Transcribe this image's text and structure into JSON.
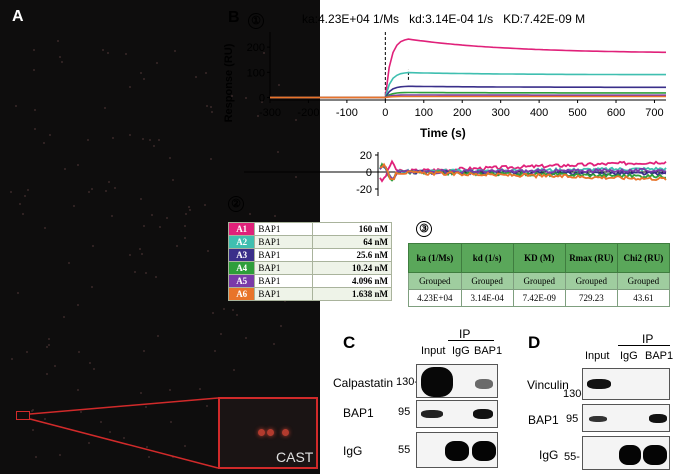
{
  "panelA": {
    "label": "A",
    "zoom_label": "CAST"
  },
  "panelB": {
    "label": "B",
    "sub1": "①",
    "sub2": "②",
    "sub3": "③",
    "kinetics_header": "ka:4.23E+04 1/Ms   kd:3.14E-04 1/s   KD:7.42E-09 M",
    "sensorgram": {
      "ylabel": "Response (RU)",
      "xlabel": "Time (s)",
      "xticks": [
        "-300",
        "-200",
        "-100",
        "0",
        "100",
        "200",
        "300",
        "400",
        "500",
        "600",
        "700"
      ],
      "yticks": [
        "0",
        "100",
        "200"
      ],
      "resid_yticks": [
        "20",
        "0",
        "-20"
      ]
    },
    "legend": [
      {
        "id": "A1",
        "ab": "BAP1",
        "conc": "160 nM",
        "color": "#e0217a"
      },
      {
        "id": "A2",
        "ab": "BAP1",
        "conc": "64 nM",
        "color": "#3fbfb0"
      },
      {
        "id": "A3",
        "ab": "BAP1",
        "conc": "25.6 nM",
        "color": "#3a2f8a"
      },
      {
        "id": "A4",
        "ab": "BAP1",
        "conc": "10.24 nM",
        "color": "#2e9e3a"
      },
      {
        "id": "A5",
        "ab": "BAP1",
        "conc": "4.096 nM",
        "color": "#7a3aa8"
      },
      {
        "id": "A6",
        "ab": "BAP1",
        "conc": "1.638 nM",
        "color": "#e8742a"
      }
    ],
    "kinetics_table": {
      "headers": [
        "ka (1/Ms)",
        "kd (1/s)",
        "KD (M)",
        "Rmax (RU)",
        "Chi2 (RU)"
      ],
      "grouped": [
        "Grouped",
        "Grouped",
        "Grouped",
        "Grouped",
        "Grouped"
      ],
      "values": [
        "4.23E+04",
        "3.14E-04",
        "7.42E-09",
        "729.23",
        "43.61"
      ]
    }
  },
  "panelC": {
    "label": "C",
    "ip": "IP",
    "lanes": [
      "Input",
      "IgG",
      "BAP1"
    ],
    "rows": [
      {
        "name": "Calpastatin",
        "mw": "130-"
      },
      {
        "name": "BAP1",
        "mw": "95"
      },
      {
        "name": "IgG",
        "mw": "55"
      }
    ]
  },
  "panelD": {
    "label": "D",
    "ip": "IP",
    "lanes": [
      "Input",
      "IgG",
      "BAP1"
    ],
    "rows": [
      {
        "name": "Vinculin",
        "mw": "130-"
      },
      {
        "name": "BAP1",
        "mw": "95"
      },
      {
        "name": "IgG",
        "mw": "55-"
      }
    ]
  },
  "chart_data": {
    "type": "line",
    "title": "ka:4.23E+04 1/Ms   kd:3.14E-04 1/s   KD:7.42E-09 M",
    "xlabel": "Time (s)",
    "ylabel": "Response (RU)",
    "xlim": [
      -300,
      730
    ],
    "ylim": [
      -10,
      260
    ],
    "series": [
      {
        "name": "160 nM",
        "plateau": 235,
        "end": 175
      },
      {
        "name": "64 nM",
        "plateau": 100,
        "end": 90
      },
      {
        "name": "25.6 nM",
        "plateau": 45,
        "end": 40
      },
      {
        "name": "10.24 nM",
        "plateau": 20,
        "end": 18
      },
      {
        "name": "4.096 nM",
        "plateau": 10,
        "end": 9
      },
      {
        "name": "1.638 nM",
        "plateau": 4,
        "end": 4
      }
    ]
  }
}
